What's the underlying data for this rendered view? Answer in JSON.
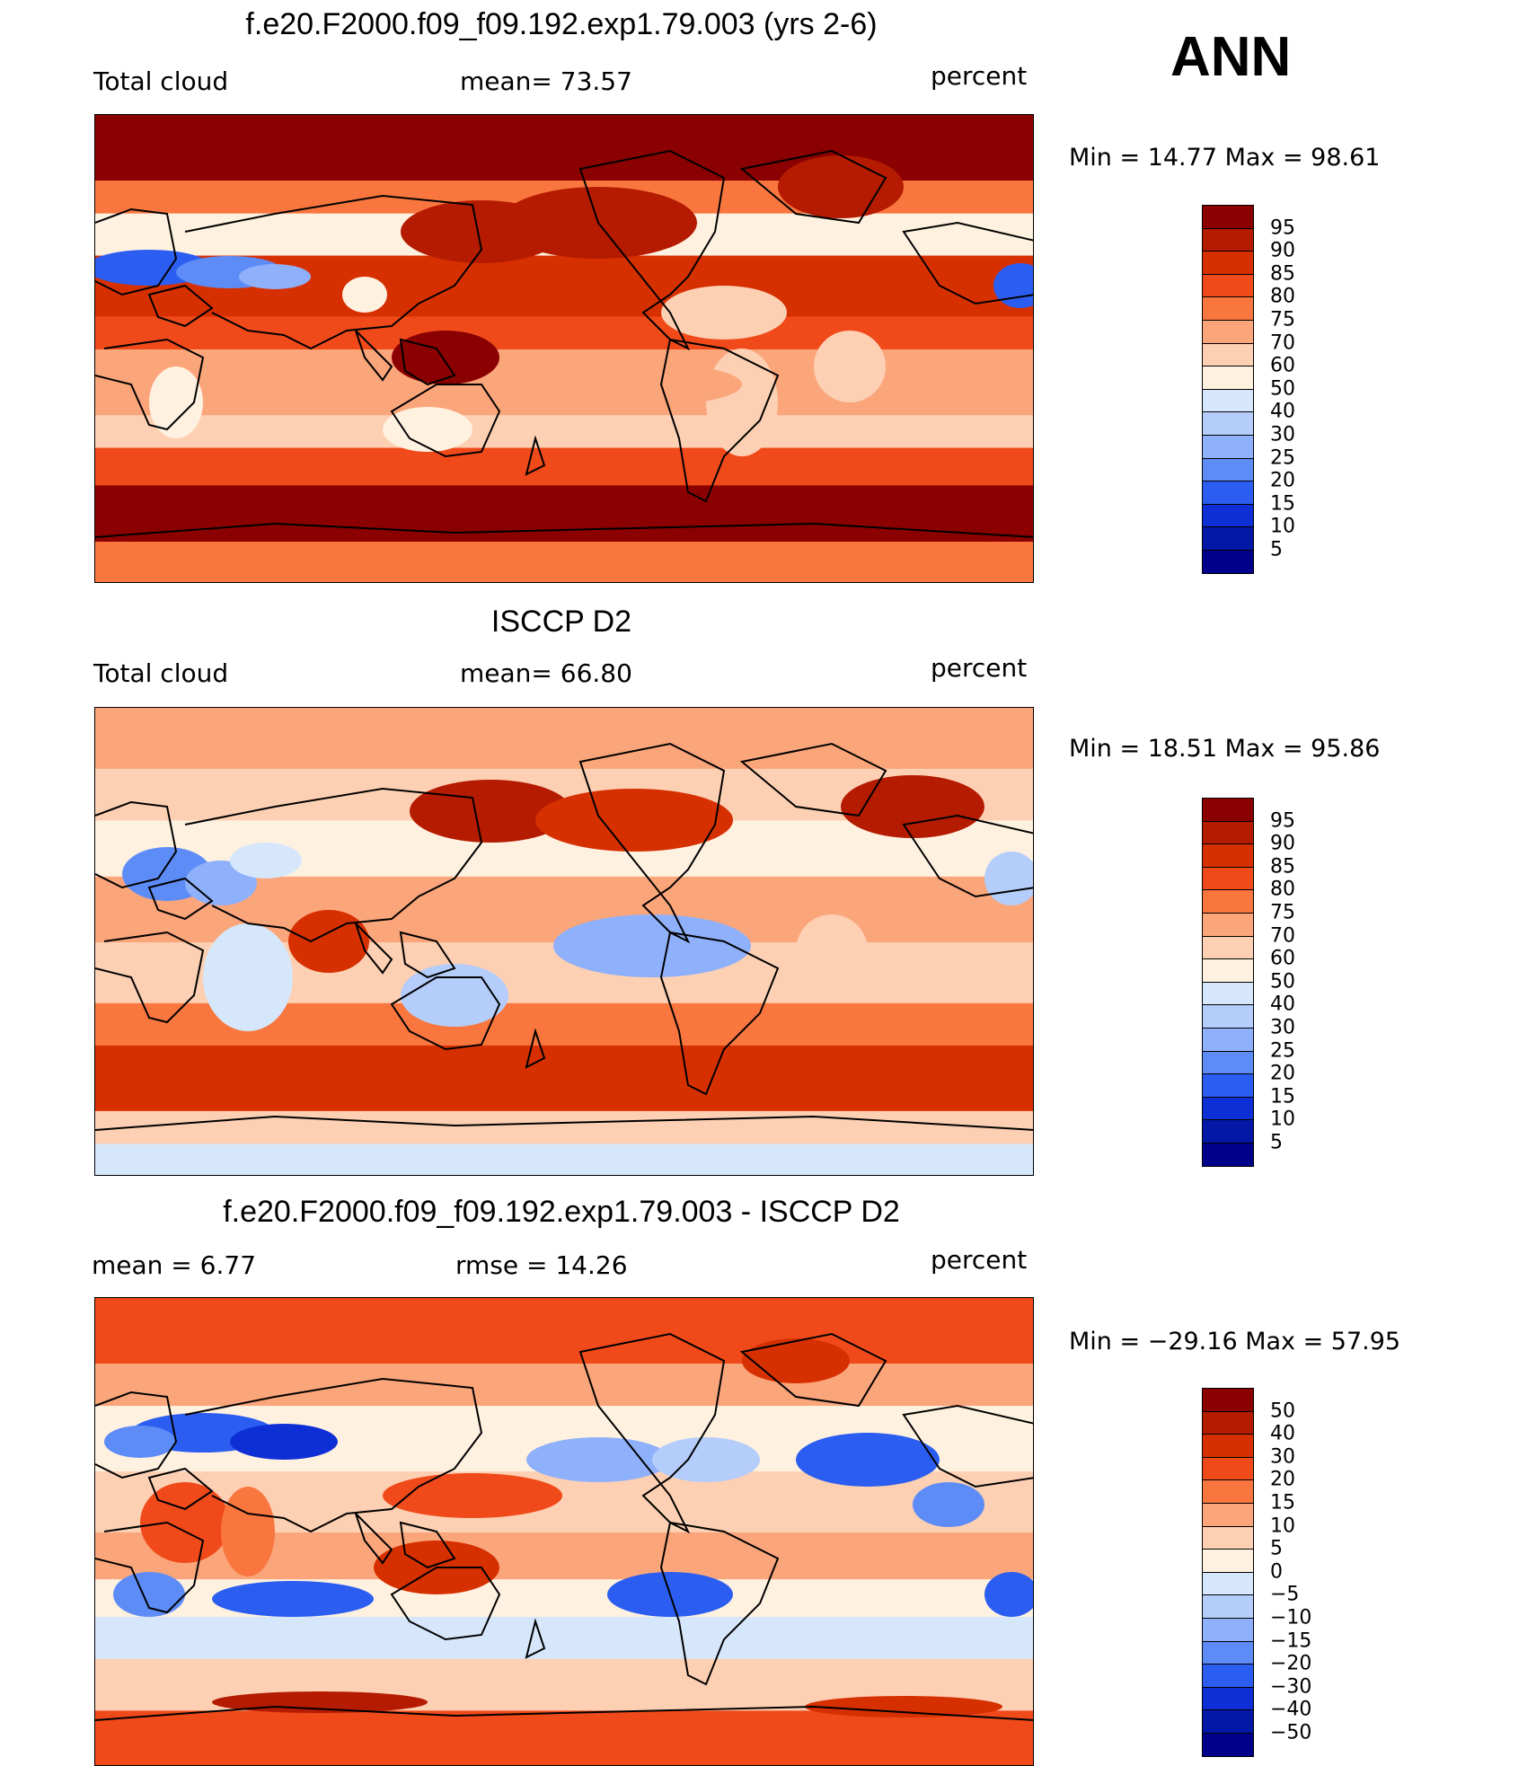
{
  "corner_label": "ANN",
  "panels": [
    {
      "title": "f.e20.F2000.f09_f09.192.exp1.79.003 (yrs 2-6)",
      "left_label": "Total cloud",
      "center_label": "mean=   73.57",
      "units": "percent",
      "minmax": "Min  =    14.77  Max  =    98.61",
      "colorbar": {
        "labels": [
          "95",
          "90",
          "85",
          "80",
          "75",
          "70",
          "60",
          "50",
          "40",
          "30",
          "25",
          "20",
          "15",
          "10",
          "5"
        ],
        "colors": [
          "#8b0000",
          "#b41b00",
          "#d73000",
          "#f04a1a",
          "#f9773f",
          "#fba57b",
          "#fdd0b3",
          "#fff1e0",
          "#d6e7fb",
          "#b4cdfa",
          "#8fb0fb",
          "#5e8cf7",
          "#2b5ef0",
          "#0f2fd6",
          "#0418a8",
          "#00008a"
        ]
      },
      "map_style": "model"
    },
    {
      "title": "ISCCP D2",
      "left_label": "Total cloud",
      "center_label": "mean=   66.80",
      "units": "percent",
      "minmax": "Min  =    18.51  Max  =    95.86",
      "colorbar": {
        "labels": [
          "95",
          "90",
          "85",
          "80",
          "75",
          "70",
          "60",
          "50",
          "40",
          "30",
          "25",
          "20",
          "15",
          "10",
          "5"
        ],
        "colors": [
          "#8b0000",
          "#b41b00",
          "#d73000",
          "#f04a1a",
          "#f9773f",
          "#fba57b",
          "#fdd0b3",
          "#fff1e0",
          "#d6e7fb",
          "#b4cdfa",
          "#8fb0fb",
          "#5e8cf7",
          "#2b5ef0",
          "#0f2fd6",
          "#0418a8",
          "#00008a"
        ]
      },
      "map_style": "obs"
    },
    {
      "title": "f.e20.F2000.f09_f09.192.exp1.79.003 - ISCCP D2",
      "left_label": "mean  =       6.77",
      "center_label": "rmse  =    14.26",
      "units": "percent",
      "minmax": "Min  = −29.16  Max  =    57.95",
      "colorbar": {
        "labels": [
          "50",
          "40",
          "30",
          "20",
          "15",
          "10",
          "5",
          "0",
          "−5",
          "−10",
          "−15",
          "−20",
          "−30",
          "−40",
          "−50"
        ],
        "colors": [
          "#8b0000",
          "#b41b00",
          "#d73000",
          "#f04a1a",
          "#f9773f",
          "#fba57b",
          "#fdd0b3",
          "#fff1e0",
          "#d6e7fb",
          "#b4cdfa",
          "#8fb0fb",
          "#5e8cf7",
          "#2b5ef0",
          "#0f2fd6",
          "#0418a8",
          "#00008a"
        ]
      },
      "map_style": "diff"
    }
  ]
}
